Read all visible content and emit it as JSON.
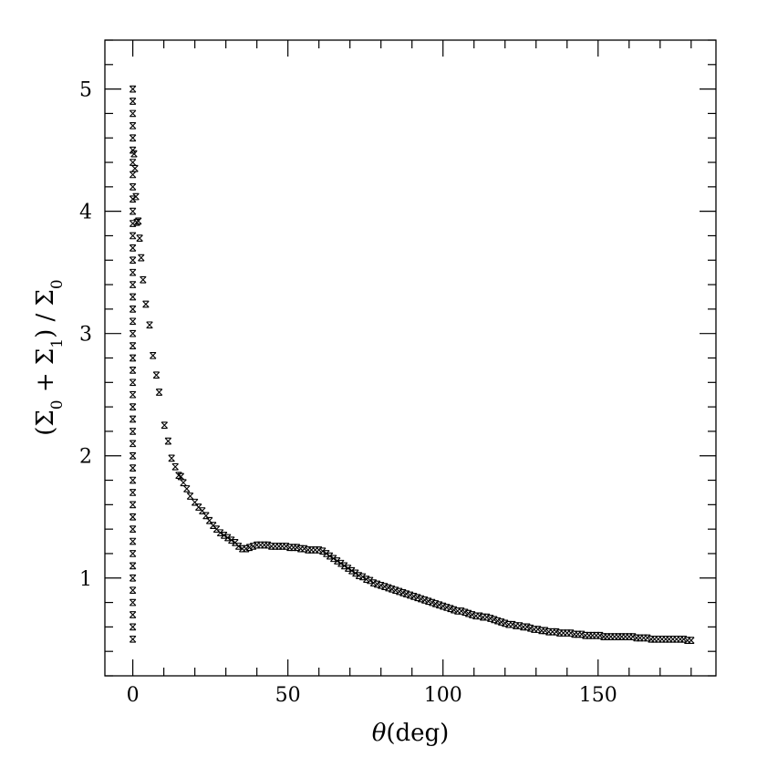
{
  "chart_data": {
    "type": "scatter",
    "xlabel_symbol": "θ",
    "xlabel_unit": "(deg)",
    "ylabel_parts": {
      "open": "(Σ",
      "sub0": "0",
      "plus": " + Σ",
      "sub1": "1",
      "close": ") / Σ",
      "sub2": "0"
    },
    "xlim": [
      -9,
      188
    ],
    "ylim": [
      0.2,
      5.4
    ],
    "x_ticks": [
      0,
      50,
      100,
      150
    ],
    "x_tick_labels": [
      "0",
      "50",
      "100",
      "150"
    ],
    "y_ticks": [
      1,
      2,
      3,
      4,
      5
    ],
    "y_tick_labels": [
      "1",
      "2",
      "3",
      "4",
      "5"
    ],
    "grid": false,
    "marker": "cross-box",
    "series": [
      {
        "points": [
          [
            0,
            0.5
          ],
          [
            0,
            0.6
          ],
          [
            0,
            0.7
          ],
          [
            0,
            0.8
          ],
          [
            0,
            0.9
          ],
          [
            0,
            1.0
          ],
          [
            0,
            1.1
          ],
          [
            0,
            1.2
          ],
          [
            0,
            1.3
          ],
          [
            0,
            1.4
          ],
          [
            0,
            1.5
          ],
          [
            0,
            1.6
          ],
          [
            0,
            1.7
          ],
          [
            0,
            1.8
          ],
          [
            0,
            1.9
          ],
          [
            0,
            2.0
          ],
          [
            0,
            2.1
          ],
          [
            0,
            2.2
          ],
          [
            0,
            2.3
          ],
          [
            0,
            2.4
          ],
          [
            0,
            2.5
          ],
          [
            0,
            2.6
          ],
          [
            0,
            2.7
          ],
          [
            0,
            2.8
          ],
          [
            0,
            2.9
          ],
          [
            0,
            3.0
          ],
          [
            0,
            3.1
          ],
          [
            0,
            3.2
          ],
          [
            0,
            3.3
          ],
          [
            0,
            3.4
          ],
          [
            0,
            3.5
          ],
          [
            0,
            3.6
          ],
          [
            0,
            3.7
          ],
          [
            0,
            3.8
          ],
          [
            0,
            3.9
          ],
          [
            0,
            4.0
          ],
          [
            0,
            4.1
          ],
          [
            0,
            4.2
          ],
          [
            0,
            4.3
          ],
          [
            0,
            4.4
          ],
          [
            0,
            4.5
          ],
          [
            0,
            4.6
          ],
          [
            0,
            4.7
          ],
          [
            0,
            4.8
          ],
          [
            0,
            4.9
          ],
          [
            0,
            5.0
          ],
          [
            0.4,
            4.47
          ],
          [
            0.7,
            4.35
          ],
          [
            1.0,
            4.12
          ],
          [
            1.3,
            3.91
          ],
          [
            1.8,
            3.92
          ],
          [
            2.2,
            3.78
          ],
          [
            2.7,
            3.62
          ],
          [
            3.3,
            3.44
          ],
          [
            4.2,
            3.24
          ],
          [
            5.4,
            3.07
          ],
          [
            6.5,
            2.82
          ],
          [
            7.6,
            2.66
          ],
          [
            8.5,
            2.52
          ],
          [
            10.2,
            2.25
          ],
          [
            11.4,
            2.12
          ],
          [
            12.5,
            1.98
          ],
          [
            13.7,
            1.91
          ],
          [
            14.8,
            1.84
          ],
          [
            15.5,
            1.83
          ],
          [
            16.3,
            1.78
          ],
          [
            17.4,
            1.73
          ],
          [
            18.5,
            1.67
          ],
          [
            20.0,
            1.62
          ],
          [
            21.2,
            1.58
          ],
          [
            22.4,
            1.55
          ],
          [
            23.6,
            1.51
          ],
          [
            24.7,
            1.47
          ],
          [
            25.9,
            1.43
          ],
          [
            27.0,
            1.4
          ],
          [
            28.2,
            1.37
          ],
          [
            29.4,
            1.35
          ],
          [
            30.6,
            1.33
          ],
          [
            31.8,
            1.31
          ],
          [
            33.0,
            1.29
          ],
          [
            34.1,
            1.26
          ],
          [
            35.3,
            1.24
          ],
          [
            36.5,
            1.24
          ],
          [
            37.6,
            1.25
          ],
          [
            38.8,
            1.26
          ],
          [
            40.0,
            1.27
          ],
          [
            41.2,
            1.27
          ],
          [
            42.4,
            1.27
          ],
          [
            43.5,
            1.27
          ],
          [
            44.7,
            1.26
          ],
          [
            45.9,
            1.26
          ],
          [
            47.1,
            1.26
          ],
          [
            48.2,
            1.26
          ],
          [
            49.4,
            1.26
          ],
          [
            50.6,
            1.25
          ],
          [
            51.8,
            1.25
          ],
          [
            52.9,
            1.25
          ],
          [
            54.1,
            1.24
          ],
          [
            55.3,
            1.24
          ],
          [
            56.5,
            1.23
          ],
          [
            57.6,
            1.23
          ],
          [
            58.8,
            1.23
          ],
          [
            60.0,
            1.23
          ],
          [
            61.2,
            1.22
          ],
          [
            62.4,
            1.2
          ],
          [
            63.5,
            1.18
          ],
          [
            64.7,
            1.16
          ],
          [
            65.9,
            1.14
          ],
          [
            67.1,
            1.12
          ],
          [
            68.2,
            1.1
          ],
          [
            69.4,
            1.08
          ],
          [
            70.6,
            1.06
          ],
          [
            71.8,
            1.04
          ],
          [
            72.9,
            1.02
          ],
          [
            74.1,
            1.01
          ],
          [
            75.3,
            0.99
          ],
          [
            76.5,
            0.98
          ],
          [
            77.6,
            0.96
          ],
          [
            78.8,
            0.95
          ],
          [
            80.0,
            0.94
          ],
          [
            81.2,
            0.93
          ],
          [
            82.4,
            0.92
          ],
          [
            83.5,
            0.91
          ],
          [
            84.7,
            0.9
          ],
          [
            85.9,
            0.89
          ],
          [
            87.1,
            0.88
          ],
          [
            88.2,
            0.87
          ],
          [
            89.4,
            0.86
          ],
          [
            90.6,
            0.85
          ],
          [
            91.8,
            0.84
          ],
          [
            92.9,
            0.83
          ],
          [
            94.1,
            0.82
          ],
          [
            95.3,
            0.81
          ],
          [
            96.5,
            0.8
          ],
          [
            97.6,
            0.79
          ],
          [
            98.8,
            0.78
          ],
          [
            100.0,
            0.77
          ],
          [
            101.2,
            0.76
          ],
          [
            102.4,
            0.75
          ],
          [
            103.5,
            0.74
          ],
          [
            104.7,
            0.73
          ],
          [
            105.9,
            0.73
          ],
          [
            107.1,
            0.72
          ],
          [
            108.2,
            0.71
          ],
          [
            109.4,
            0.7
          ],
          [
            110.6,
            0.69
          ],
          [
            111.8,
            0.69
          ],
          [
            112.9,
            0.68
          ],
          [
            114.1,
            0.68
          ],
          [
            115.3,
            0.67
          ],
          [
            116.5,
            0.66
          ],
          [
            117.6,
            0.65
          ],
          [
            118.8,
            0.64
          ],
          [
            120.0,
            0.63
          ],
          [
            121.2,
            0.62
          ],
          [
            122.4,
            0.62
          ],
          [
            123.5,
            0.61
          ],
          [
            124.7,
            0.61
          ],
          [
            125.9,
            0.6
          ],
          [
            127.1,
            0.6
          ],
          [
            128.2,
            0.59
          ],
          [
            129.4,
            0.58
          ],
          [
            130.6,
            0.58
          ],
          [
            131.8,
            0.57
          ],
          [
            132.9,
            0.57
          ],
          [
            134.1,
            0.56
          ],
          [
            135.3,
            0.56
          ],
          [
            136.5,
            0.56
          ],
          [
            137.6,
            0.55
          ],
          [
            138.8,
            0.55
          ],
          [
            140.0,
            0.55
          ],
          [
            141.2,
            0.55
          ],
          [
            142.4,
            0.54
          ],
          [
            143.5,
            0.54
          ],
          [
            144.7,
            0.54
          ],
          [
            145.9,
            0.53
          ],
          [
            147.1,
            0.53
          ],
          [
            148.2,
            0.53
          ],
          [
            149.4,
            0.53
          ],
          [
            150.6,
            0.53
          ],
          [
            151.8,
            0.52
          ],
          [
            152.9,
            0.52
          ],
          [
            154.1,
            0.52
          ],
          [
            155.3,
            0.52
          ],
          [
            156.5,
            0.52
          ],
          [
            157.6,
            0.52
          ],
          [
            158.8,
            0.52
          ],
          [
            160.0,
            0.52
          ],
          [
            161.2,
            0.52
          ],
          [
            162.4,
            0.51
          ],
          [
            163.5,
            0.51
          ],
          [
            164.7,
            0.51
          ],
          [
            165.9,
            0.51
          ],
          [
            167.1,
            0.5
          ],
          [
            168.2,
            0.5
          ],
          [
            169.4,
            0.5
          ],
          [
            170.6,
            0.5
          ],
          [
            171.8,
            0.5
          ],
          [
            172.9,
            0.5
          ],
          [
            174.1,
            0.5
          ],
          [
            175.3,
            0.5
          ],
          [
            176.5,
            0.5
          ],
          [
            177.6,
            0.5
          ],
          [
            178.8,
            0.49
          ],
          [
            180.0,
            0.49
          ]
        ]
      }
    ]
  }
}
